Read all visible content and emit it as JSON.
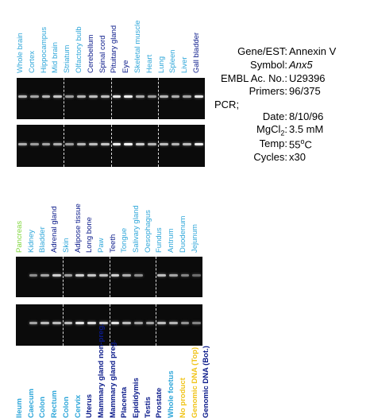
{
  "panel1": {
    "lanes": [
      {
        "label": "Whole brain",
        "color": "#2ea6d9"
      },
      {
        "label": "Cortex",
        "color": "#2ea6d9"
      },
      {
        "label": "Hippocampus",
        "color": "#2ea6d9"
      },
      {
        "label": "Mid brain",
        "color": "#2ea6d9"
      },
      {
        "label": "Striatum",
        "color": "#2ea6d9"
      },
      {
        "label": "Olfactory bulb",
        "color": "#2ea6d9"
      },
      {
        "label": "Cerebellum",
        "color": "#0a1a8a"
      },
      {
        "label": "Spinal cord",
        "color": "#0a1a8a"
      },
      {
        "label": "Pituitary gland",
        "color": "#0a1a8a"
      },
      {
        "label": "Eye",
        "color": "#0a1a8a"
      },
      {
        "label": "Skeletal muscle",
        "color": "#2ea6d9"
      },
      {
        "label": "Heart",
        "color": "#2ea6d9"
      },
      {
        "label": "Lung",
        "color": "#2ea6d9"
      },
      {
        "label": "Spleen",
        "color": "#2ea6d9"
      },
      {
        "label": "Liver",
        "color": "#2ea6d9"
      },
      {
        "label": "Gall bladder",
        "color": "#0a1a8a"
      }
    ],
    "gel1_intensity": [
      0.55,
      0.45,
      0.55,
      0.65,
      0.4,
      0.55,
      0.6,
      0.6,
      0.85,
      0.9,
      0.5,
      0.4,
      0.55,
      0.5,
      0.45,
      0.85
    ],
    "gel2_intensity": [
      0.5,
      0.4,
      0.45,
      0.5,
      0.4,
      0.55,
      0.6,
      0.65,
      0.9,
      0.95,
      0.7,
      0.55,
      0.6,
      0.55,
      0.6,
      0.9
    ]
  },
  "panel2": {
    "lanes": [
      {
        "label": "Pancreas",
        "color": "#7fd63a"
      },
      {
        "label": "Kidney",
        "color": "#2ea6d9"
      },
      {
        "label": "Bladder",
        "color": "#2ea6d9"
      },
      {
        "label": "Adrenal gland",
        "color": "#0a1a8a"
      },
      {
        "label": "Skin",
        "color": "#2ea6d9"
      },
      {
        "label": "Adipose tissue",
        "color": "#0a1a8a"
      },
      {
        "label": "Long bone",
        "color": "#0a1a8a"
      },
      {
        "label": "Paw",
        "color": "#2ea6d9"
      },
      {
        "label": "Teeth",
        "color": "#0a1a8a"
      },
      {
        "label": "Tongue",
        "color": "#2ea6d9"
      },
      {
        "label": "Salivary gland",
        "color": "#2ea6d9"
      },
      {
        "label": "Oesophagus",
        "color": "#2ea6d9"
      },
      {
        "label": "Fundus",
        "color": "#2ea6d9"
      },
      {
        "label": "Antrum",
        "color": "#2ea6d9"
      },
      {
        "label": "Duodenum",
        "color": "#2ea6d9"
      },
      {
        "label": "Jejunum",
        "color": "#2ea6d9"
      }
    ],
    "gel1_intensity": [
      0.0,
      0.3,
      0.45,
      0.7,
      0.4,
      0.7,
      0.65,
      0.6,
      0.7,
      0.5,
      0.3,
      0.0,
      0.6,
      0.45,
      0.25,
      0.1
    ],
    "gel2_intensity": [
      0.0,
      0.45,
      0.6,
      0.6,
      0.6,
      0.85,
      0.8,
      0.75,
      0.85,
      0.6,
      0.45,
      0.45,
      0.6,
      0.55,
      0.35,
      0.25
    ]
  },
  "panel3": {
    "lanes": [
      {
        "label": "Ileum",
        "color": "#2ea6d9"
      },
      {
        "label": "Caecum",
        "color": "#2ea6d9"
      },
      {
        "label": "Colon",
        "color": "#2ea6d9"
      },
      {
        "label": "Rectum",
        "color": "#2ea6d9"
      },
      {
        "label": "Colon",
        "color": "#2ea6d9"
      },
      {
        "label": "Cervix",
        "color": "#2ea6d9"
      },
      {
        "label": "Uterus",
        "color": "#0a1a8a"
      },
      {
        "label": "Mammary gland non-preg.",
        "color": "#0a1a8a"
      },
      {
        "label": "Mammary gland preg.",
        "color": "#0a1a8a"
      },
      {
        "label": "Placenta",
        "color": "#0a1a8a"
      },
      {
        "label": "Epididymis",
        "color": "#0a1a8a"
      },
      {
        "label": "Testis",
        "color": "#0a1a8a"
      },
      {
        "label": "Prostate",
        "color": "#0a1a8a"
      },
      {
        "label": "Whole foetus",
        "color": "#2ea6d9"
      },
      {
        "label": "No product",
        "color": "#f0c419"
      },
      {
        "label": "Genomic DNA (Top)",
        "color": "#f0c419"
      },
      {
        "label": "Genomic DNA (Bot.)",
        "color": "#0a1a8a"
      }
    ]
  },
  "info": {
    "gene_key": "Gene/EST:",
    "gene_val": "Annexin V",
    "symbol_key": "Symbol:",
    "symbol_val": "Anx5",
    "embl_key": "EMBL Ac. No.:",
    "embl_val": "U29396",
    "primers_key": "Primers:",
    "primers_val": "96/375",
    "pcr_label": "PCR;",
    "date_key": "Date:",
    "date_val": "8/10/96",
    "mgcl2_key_main": "MgCl",
    "mgcl2_key_sub": "2",
    "mgcl2_key_colon": ":",
    "mgcl2_val": "3.5 mM",
    "temp_key": "Temp:",
    "temp_val_num": "55",
    "temp_val_sup": "o",
    "temp_val_unit": "C",
    "cycles_key": "Cycles:",
    "cycles_val": "x30"
  }
}
